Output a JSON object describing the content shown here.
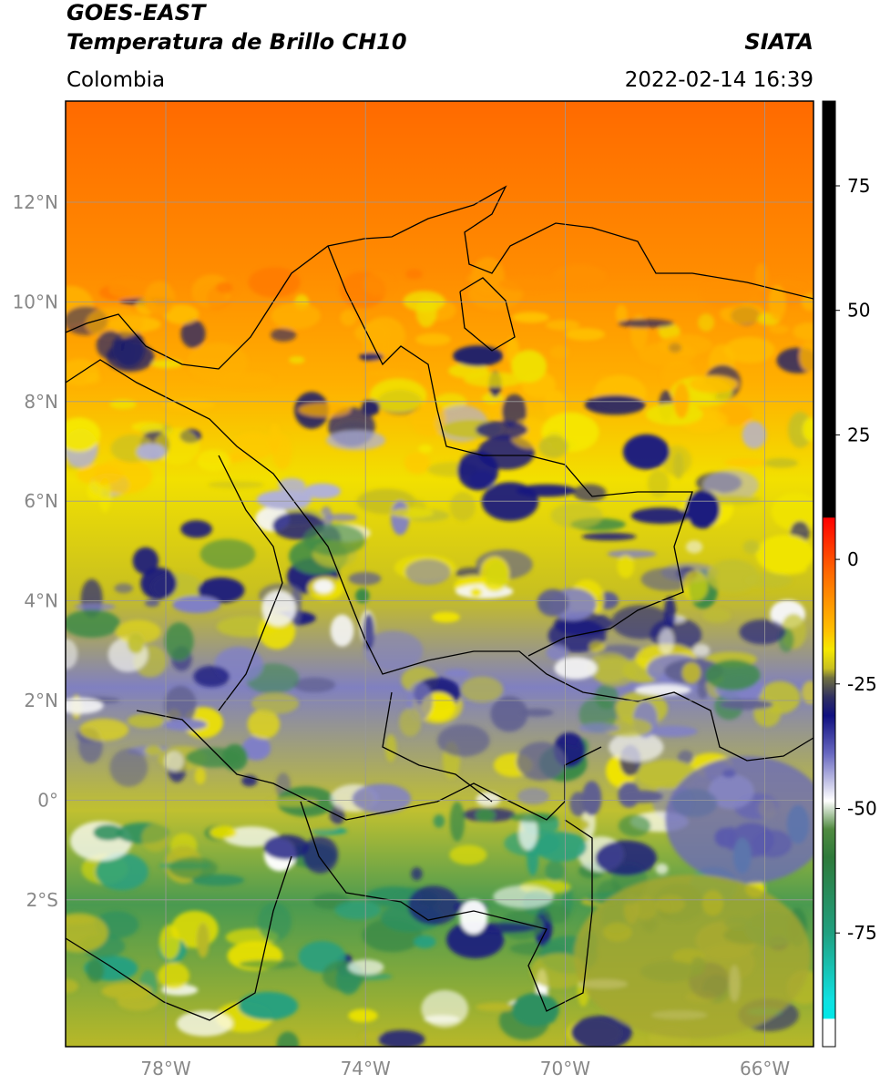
{
  "header": {
    "satellite": "GOES-EAST",
    "product": "Temperatura de Brillo CH10",
    "source": "SIATA",
    "region": "Colombia",
    "datetime": "2022-02-14 16:39"
  },
  "map": {
    "lat_labels": [
      "12°N",
      "10°N",
      "8°N",
      "6°N",
      "4°N",
      "2°N",
      "0°",
      "2°S"
    ],
    "lon_labels": [
      "78°W",
      "74°W",
      "70°W",
      "66°W"
    ]
  },
  "colorbar": {
    "ticks": [
      75,
      50,
      25,
      0,
      -25,
      -50,
      -75
    ]
  }
}
